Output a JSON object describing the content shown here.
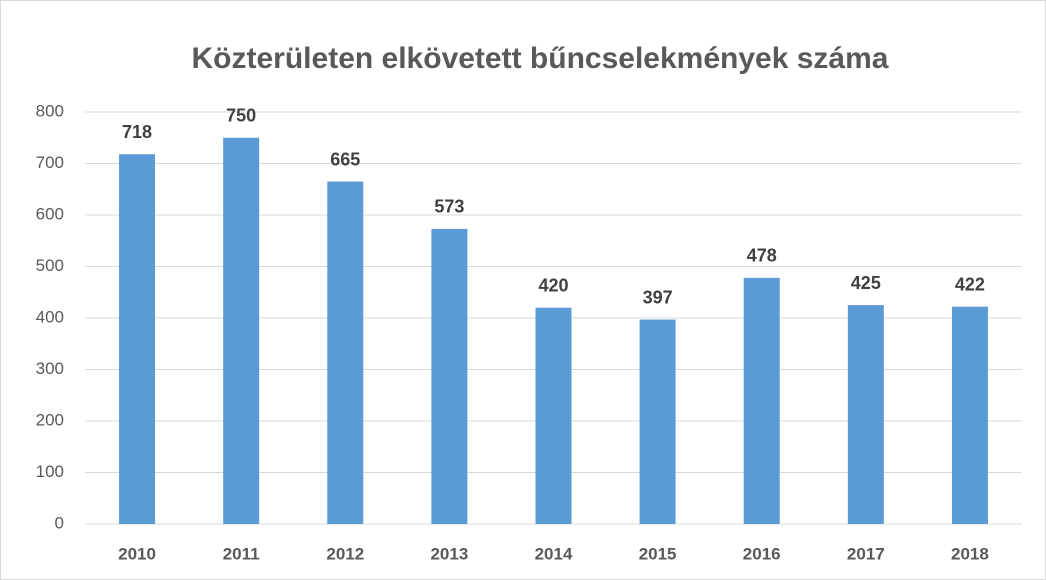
{
  "chart_data": {
    "type": "bar",
    "title": "Közterületen elkövetett bűncselekmények száma",
    "categories": [
      "2010",
      "2011",
      "2012",
      "2013",
      "2014",
      "2015",
      "2016",
      "2017",
      "2018"
    ],
    "values": [
      718,
      750,
      665,
      573,
      420,
      397,
      478,
      425,
      422
    ],
    "color": "#5b9bd5",
    "ylim": [
      0,
      800
    ],
    "yticks": [
      0,
      100,
      200,
      300,
      400,
      500,
      600,
      700,
      800
    ],
    "grid": true
  }
}
